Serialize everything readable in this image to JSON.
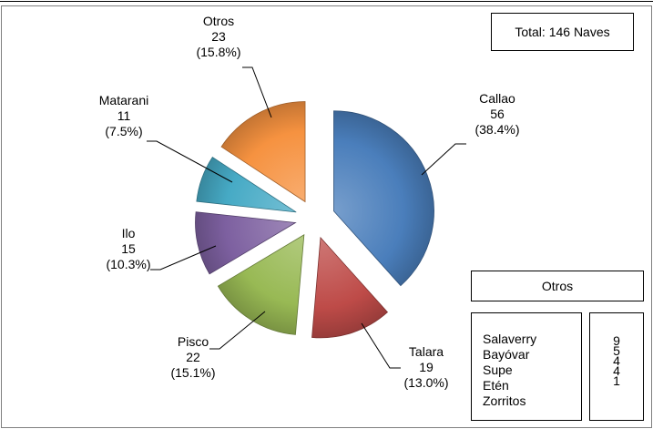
{
  "chart_data": {
    "type": "pie",
    "total_label": "Total: 146 Naves",
    "slices": [
      {
        "name": "Callao",
        "value": 56,
        "pct": "(38.4%)",
        "color": "#4a7ebb"
      },
      {
        "name": "Talara",
        "value": 19,
        "pct": "(13.0%)",
        "color": "#be4b48"
      },
      {
        "name": "Pisco",
        "value": 22,
        "pct": "(15.1%)",
        "color": "#98b954"
      },
      {
        "name": "Ilo",
        "value": 15,
        "pct": "(10.3%)",
        "color": "#7d60a0"
      },
      {
        "name": "Matarani",
        "value": 11,
        "pct": "(7.5%)",
        "color": "#46aac5"
      },
      {
        "name": "Otros",
        "value": 23,
        "pct": "(15.8%)",
        "color": "#f69240"
      }
    ],
    "otros_table": {
      "title": "Otros",
      "rows": [
        {
          "name": "Salaverry",
          "value": "9"
        },
        {
          "name": "Bayóvar",
          "value": "5"
        },
        {
          "name": "Supe",
          "value": "4"
        },
        {
          "name": "Etén",
          "value": "4"
        },
        {
          "name": "Zorritos",
          "value": "1"
        }
      ]
    }
  }
}
